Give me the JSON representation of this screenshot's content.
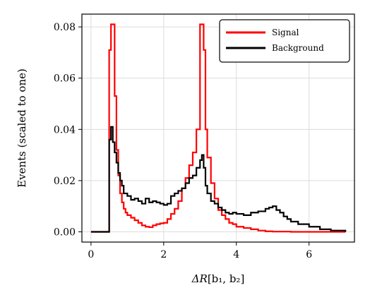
{
  "chart_data": {
    "type": "line",
    "xlabel": {
      "main": "ΔR",
      "args": "[b₁, b₂]"
    },
    "ylabel": "Events (scaled to one)",
    "xlim": [
      -0.25,
      7.25
    ],
    "ylim": [
      -0.004,
      0.085
    ],
    "x_ticks": [
      0,
      2,
      4,
      6
    ],
    "y_ticks": [
      0.0,
      0.02,
      0.04,
      0.06,
      0.08
    ],
    "x_tick_labels": [
      "0",
      "2",
      "4",
      "6"
    ],
    "y_tick_labels": [
      "0.00",
      "0.02",
      "0.04",
      "0.06",
      "0.08"
    ],
    "grid": true,
    "legend_position": "top-right",
    "series": [
      {
        "name": "Signal",
        "color": "#ff0000",
        "step_x": [
          0.0,
          0.45,
          0.5,
          0.55,
          0.6,
          0.65,
          0.7,
          0.75,
          0.8,
          0.85,
          0.9,
          0.95,
          1.0,
          1.1,
          1.2,
          1.3,
          1.4,
          1.5,
          1.6,
          1.7,
          1.8,
          1.9,
          2.0,
          2.1,
          2.2,
          2.3,
          2.4,
          2.5,
          2.6,
          2.7,
          2.8,
          2.9,
          3.0,
          3.05,
          3.1,
          3.15,
          3.2,
          3.3,
          3.4,
          3.5,
          3.6,
          3.7,
          3.8,
          3.9,
          4.0,
          4.2,
          4.4,
          4.6,
          4.8,
          5.0,
          5.5,
          6.0,
          7.0
        ],
        "values": [
          0.0,
          0.0,
          0.071,
          0.081,
          0.081,
          0.053,
          0.032,
          0.022,
          0.015,
          0.0115,
          0.009,
          0.0075,
          0.0065,
          0.0055,
          0.0045,
          0.0035,
          0.0025,
          0.002,
          0.0018,
          0.0025,
          0.003,
          0.0033,
          0.0035,
          0.005,
          0.007,
          0.009,
          0.012,
          0.017,
          0.021,
          0.026,
          0.031,
          0.04,
          0.081,
          0.081,
          0.071,
          0.04,
          0.029,
          0.019,
          0.013,
          0.0085,
          0.0065,
          0.005,
          0.0035,
          0.003,
          0.002,
          0.0015,
          0.001,
          0.0005,
          0.0002,
          0.0001,
          0.0,
          0.0,
          0.0
        ]
      },
      {
        "name": "Background",
        "color": "#000000",
        "step_x": [
          0.0,
          0.45,
          0.5,
          0.55,
          0.6,
          0.65,
          0.7,
          0.75,
          0.8,
          0.85,
          0.9,
          1.0,
          1.1,
          1.2,
          1.3,
          1.4,
          1.5,
          1.6,
          1.7,
          1.8,
          1.9,
          2.0,
          2.1,
          2.2,
          2.3,
          2.4,
          2.5,
          2.6,
          2.7,
          2.8,
          2.9,
          3.0,
          3.05,
          3.1,
          3.15,
          3.2,
          3.3,
          3.4,
          3.5,
          3.6,
          3.7,
          3.8,
          3.9,
          4.0,
          4.2,
          4.4,
          4.6,
          4.8,
          4.9,
          5.0,
          5.1,
          5.2,
          5.3,
          5.4,
          5.5,
          5.7,
          6.0,
          6.3,
          6.6,
          7.0
        ],
        "values": [
          0.0,
          0.0,
          0.036,
          0.041,
          0.035,
          0.031,
          0.027,
          0.023,
          0.02,
          0.018,
          0.015,
          0.014,
          0.0125,
          0.013,
          0.012,
          0.011,
          0.013,
          0.0115,
          0.012,
          0.0115,
          0.011,
          0.0105,
          0.011,
          0.014,
          0.015,
          0.016,
          0.017,
          0.019,
          0.021,
          0.022,
          0.025,
          0.028,
          0.03,
          0.025,
          0.018,
          0.015,
          0.012,
          0.011,
          0.0095,
          0.0085,
          0.0075,
          0.007,
          0.0075,
          0.007,
          0.0065,
          0.0075,
          0.008,
          0.009,
          0.0095,
          0.01,
          0.0085,
          0.0075,
          0.006,
          0.005,
          0.004,
          0.003,
          0.002,
          0.001,
          0.0005,
          0.0
        ]
      }
    ]
  }
}
